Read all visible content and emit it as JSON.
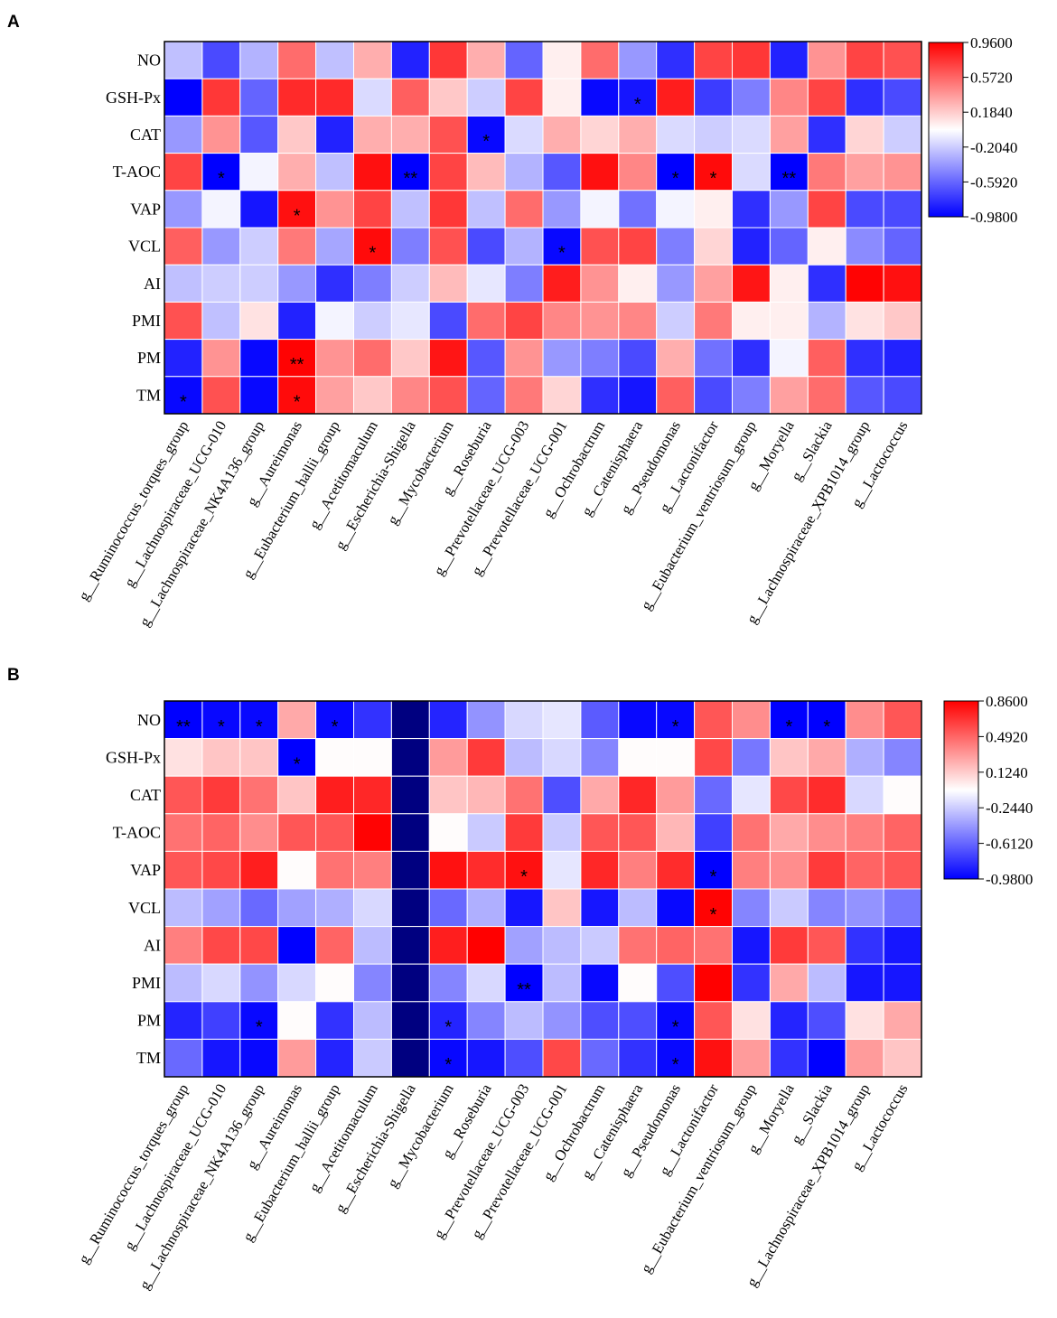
{
  "chart_data": [
    {
      "type": "heatmap",
      "panel_label": "A",
      "rows": [
        "NO",
        "GSH-Px",
        "CAT",
        "T-AOC",
        "VAP",
        "VCL",
        "AI",
        "PMI",
        "PM",
        "TM"
      ],
      "columns": [
        "g__Ruminococcus_torques_group",
        "g__Lachnospiraceae_UCG-010",
        "g__Lachnospiraceae_NK4A136_group",
        "g__Aureimonas",
        "g__Eubacterium_hallii_group",
        "g__Acetitomaculum",
        "g__Escherichia-Shigella",
        "g__Mycobacterium",
        "g__Roseburia",
        "g__Prevotellaceae_UCG-003",
        "g__Prevotellaceae_UCG-001",
        "g__Ochrobactrum",
        "g__Catenisphaera",
        "g__Pseudomonas",
        "g__Lactonifactor",
        "g__Eubacterium_ventriosum_group",
        "g__Moryella",
        "g__Slackia",
        "g__Lachnospiraceae_XPB1014_group",
        "g__Lactococcus"
      ],
      "values": [
        [
          -0.25,
          -0.7,
          -0.3,
          0.55,
          -0.25,
          0.3,
          -0.85,
          0.75,
          0.3,
          -0.6,
          0.05,
          0.55,
          -0.4,
          -0.8,
          0.7,
          0.75,
          -0.85,
          0.4,
          0.7,
          0.65
        ],
        [
          -0.98,
          0.75,
          -0.6,
          0.8,
          0.8,
          -0.15,
          0.6,
          0.2,
          -0.2,
          0.7,
          0.05,
          -0.95,
          -0.9,
          0.85,
          -0.75,
          -0.5,
          0.45,
          0.7,
          -0.8,
          -0.7
        ],
        [
          -0.4,
          0.4,
          -0.65,
          0.2,
          -0.85,
          0.3,
          0.3,
          0.65,
          -0.95,
          -0.15,
          0.3,
          0.15,
          0.3,
          -0.15,
          -0.2,
          -0.15,
          0.35,
          -0.8,
          0.15,
          -0.2
        ],
        [
          0.7,
          -0.98,
          -0.05,
          0.3,
          -0.25,
          0.9,
          -0.98,
          0.7,
          0.25,
          -0.3,
          -0.65,
          0.9,
          0.45,
          -0.98,
          0.92,
          -0.15,
          -0.98,
          0.5,
          0.35,
          0.4
        ],
        [
          -0.4,
          -0.05,
          -0.9,
          0.9,
          0.4,
          0.7,
          -0.25,
          0.75,
          -0.25,
          0.55,
          -0.4,
          -0.05,
          -0.55,
          -0.05,
          0.05,
          -0.8,
          -0.4,
          0.7,
          -0.7,
          -0.7
        ],
        [
          0.6,
          -0.4,
          -0.2,
          0.5,
          -0.35,
          0.92,
          -0.5,
          0.65,
          -0.7,
          -0.3,
          -0.95,
          0.65,
          0.7,
          -0.5,
          0.15,
          -0.85,
          -0.6,
          0.05,
          -0.45,
          -0.6
        ],
        [
          -0.25,
          -0.2,
          -0.2,
          -0.4,
          -0.8,
          -0.5,
          -0.2,
          0.25,
          -0.1,
          -0.5,
          0.85,
          0.4,
          0.05,
          -0.4,
          0.35,
          0.88,
          0.05,
          -0.8,
          0.95,
          0.9
        ],
        [
          0.65,
          -0.25,
          0.1,
          -0.85,
          -0.05,
          -0.2,
          -0.1,
          -0.7,
          0.55,
          0.7,
          0.45,
          0.4,
          0.45,
          -0.2,
          0.5,
          0.05,
          0.05,
          -0.3,
          0.1,
          0.2
        ],
        [
          -0.85,
          0.4,
          -0.95,
          0.95,
          0.4,
          0.55,
          0.2,
          0.88,
          -0.65,
          0.4,
          -0.4,
          -0.5,
          -0.7,
          0.3,
          -0.55,
          -0.8,
          -0.05,
          0.6,
          -0.8,
          -0.85
        ],
        [
          -0.95,
          0.65,
          -0.95,
          0.92,
          0.35,
          0.2,
          0.45,
          0.65,
          -0.6,
          0.5,
          0.15,
          -0.8,
          -0.9,
          0.6,
          -0.7,
          -0.5,
          0.35,
          0.55,
          -0.65,
          -0.7
        ]
      ],
      "significance": [
        [
          "",
          "",
          "",
          "",
          "",
          "",
          "",
          "",
          "",
          "",
          "",
          "",
          "",
          "",
          "",
          "",
          "",
          "",
          "",
          ""
        ],
        [
          "",
          "",
          "",
          "",
          "",
          "",
          "",
          "",
          "",
          "",
          "",
          "",
          "*",
          "",
          "",
          "",
          "",
          "",
          "",
          ""
        ],
        [
          "",
          "",
          "",
          "",
          "",
          "",
          "",
          "",
          "*",
          "",
          "",
          "",
          "",
          "",
          "",
          "",
          "",
          "",
          "",
          ""
        ],
        [
          "",
          "*",
          "",
          "",
          "",
          "",
          "**",
          "",
          "",
          "",
          "",
          "",
          "",
          "*",
          "*",
          "",
          "**",
          "",
          "",
          ""
        ],
        [
          "",
          "",
          "",
          "*",
          "",
          "",
          "",
          "",
          "",
          "",
          "",
          "",
          "",
          "",
          "",
          "",
          "",
          "",
          "",
          ""
        ],
        [
          "",
          "",
          "",
          "",
          "",
          "*",
          "",
          "",
          "",
          "",
          "*",
          "",
          "",
          "",
          "",
          "",
          "",
          "",
          "",
          ""
        ],
        [
          "",
          "",
          "",
          "",
          "",
          "",
          "",
          "",
          "",
          "",
          "",
          "",
          "",
          "",
          "",
          "",
          "",
          "",
          "",
          ""
        ],
        [
          "",
          "",
          "",
          "",
          "",
          "",
          "",
          "",
          "",
          "",
          "",
          "",
          "",
          "",
          "",
          "",
          "",
          "",
          "",
          ""
        ],
        [
          "",
          "",
          "",
          "**",
          "",
          "",
          "",
          "",
          "",
          "",
          "",
          "",
          "",
          "",
          "",
          "",
          "",
          "",
          "",
          ""
        ],
        [
          "*",
          "",
          "",
          "*",
          "",
          "",
          "",
          "",
          "",
          "",
          "",
          "",
          "",
          "",
          "",
          "",
          "",
          "",
          "",
          ""
        ]
      ],
      "colorbar": {
        "min": -0.98,
        "max": 0.96,
        "ticks": [
          "0.9600",
          "0.5720",
          "0.1840",
          "-0.2040",
          "-0.5920",
          "-0.9800"
        ]
      },
      "colors": {
        "high": "#ff0000",
        "mid": "#ffffff",
        "low": "#0000ff"
      }
    },
    {
      "type": "heatmap",
      "panel_label": "B",
      "rows": [
        "NO",
        "GSH-Px",
        "CAT",
        "T-AOC",
        "VAP",
        "VCL",
        "AI",
        "PMI",
        "PM",
        "TM"
      ],
      "columns": [
        "g__Ruminococcus_torques_group",
        "g__Lachnospiraceae_UCG-010",
        "g__Lachnospiraceae_NK4A136_group",
        "g__Aureimonas",
        "g__Eubacterium_hallii_group",
        "g__Acetitomaculum",
        "g__Escherichia-Shigella",
        "g__Mycobacterium",
        "g__Roseburia",
        "g__Prevotellaceae_UCG-003",
        "g__Prevotellaceae_UCG-001",
        "g__Ochrobactrum",
        "g__Catenisphaera",
        "g__Pseudomonas",
        "g__Lactonifactor",
        "g__Eubacterium_ventriosum_group",
        "g__Moryella",
        "g__Slackia",
        "g__Lachnospiraceae_XPB1014_group",
        "g__Lactococcus"
      ],
      "values": [
        [
          -0.98,
          -0.95,
          -0.95,
          0.25,
          -0.95,
          -0.8,
          null,
          -0.85,
          -0.45,
          -0.2,
          -0.15,
          -0.65,
          -0.95,
          -0.95,
          0.55,
          0.35,
          -0.98,
          -0.98,
          0.35,
          0.55
        ],
        [
          0.05,
          0.15,
          0.15,
          -0.98,
          -0.05,
          -0.05,
          null,
          0.3,
          0.65,
          -0.3,
          -0.2,
          -0.5,
          -0.05,
          -0.05,
          0.6,
          -0.55,
          0.15,
          0.25,
          -0.35,
          -0.5
        ],
        [
          0.55,
          0.65,
          0.45,
          0.15,
          0.75,
          0.72,
          null,
          0.15,
          0.2,
          0.45,
          -0.7,
          0.25,
          0.72,
          0.3,
          -0.6,
          -0.15,
          0.6,
          0.7,
          -0.2,
          -0.05
        ],
        [
          0.45,
          0.5,
          0.35,
          0.55,
          0.55,
          0.85,
          null,
          -0.05,
          -0.25,
          0.65,
          -0.25,
          0.55,
          0.55,
          0.2,
          -0.75,
          0.45,
          0.25,
          0.35,
          0.4,
          0.5
        ],
        [
          0.55,
          0.6,
          0.75,
          -0.05,
          0.45,
          0.4,
          null,
          0.8,
          0.7,
          0.8,
          -0.15,
          0.72,
          0.4,
          0.7,
          -0.98,
          0.4,
          0.35,
          0.65,
          0.5,
          0.55
        ],
        [
          -0.3,
          -0.4,
          -0.6,
          -0.4,
          -0.35,
          -0.2,
          null,
          -0.6,
          -0.35,
          -0.9,
          0.15,
          -0.9,
          -0.3,
          -0.95,
          0.85,
          -0.5,
          -0.25,
          -0.5,
          -0.45,
          -0.55
        ],
        [
          0.4,
          0.6,
          0.6,
          -0.98,
          0.5,
          -0.3,
          null,
          0.75,
          0.86,
          -0.4,
          -0.3,
          -0.25,
          0.45,
          0.5,
          0.45,
          -0.9,
          0.65,
          0.55,
          -0.8,
          -0.9
        ],
        [
          -0.3,
          -0.2,
          -0.45,
          -0.2,
          -0.05,
          -0.5,
          null,
          -0.5,
          -0.2,
          -0.98,
          -0.3,
          -0.95,
          -0.05,
          -0.7,
          0.86,
          -0.8,
          0.25,
          -0.3,
          -0.9,
          -0.9
        ],
        [
          -0.85,
          -0.75,
          -0.95,
          -0.05,
          -0.8,
          -0.3,
          null,
          -0.85,
          -0.5,
          -0.3,
          -0.45,
          -0.7,
          -0.7,
          -0.95,
          0.55,
          0.05,
          -0.85,
          -0.7,
          0.05,
          0.25
        ],
        [
          -0.6,
          -0.9,
          -0.95,
          0.3,
          -0.85,
          -0.25,
          null,
          -0.95,
          -0.9,
          -0.7,
          0.6,
          -0.6,
          -0.8,
          -0.95,
          0.8,
          0.3,
          -0.8,
          -0.98,
          0.3,
          0.15
        ]
      ],
      "significance": [
        [
          "**",
          "*",
          "*",
          "",
          "*",
          "",
          "",
          "",
          "",
          "",
          "",
          "",
          "",
          "*",
          "",
          "",
          "*",
          "*",
          "",
          ""
        ],
        [
          "",
          "",
          "",
          "*",
          "",
          "",
          "",
          "",
          "",
          "",
          "",
          "",
          "",
          "",
          "",
          "",
          "",
          "",
          "",
          ""
        ],
        [
          "",
          "",
          "",
          "",
          "",
          "",
          "",
          "",
          "",
          "",
          "",
          "",
          "",
          "",
          "",
          "",
          "",
          "",
          "",
          ""
        ],
        [
          "",
          "",
          "",
          "",
          "",
          "",
          "",
          "",
          "",
          "",
          "",
          "",
          "",
          "",
          "",
          "",
          "",
          "",
          "",
          ""
        ],
        [
          "",
          "",
          "",
          "",
          "",
          "",
          "",
          "",
          "",
          "*",
          "",
          "",
          "",
          "",
          "*",
          "",
          "",
          "",
          "",
          ""
        ],
        [
          "",
          "",
          "",
          "",
          "",
          "",
          "",
          "",
          "",
          "",
          "",
          "",
          "",
          "",
          "*",
          "",
          "",
          "",
          "",
          ""
        ],
        [
          "",
          "",
          "",
          "",
          "",
          "",
          "",
          "",
          "",
          "",
          "",
          "",
          "",
          "",
          "",
          "",
          "",
          "",
          "",
          ""
        ],
        [
          "",
          "",
          "",
          "",
          "",
          "",
          "",
          "",
          "",
          "**",
          "",
          "",
          "",
          "",
          "",
          "",
          "",
          "",
          "",
          ""
        ],
        [
          "",
          "",
          "*",
          "",
          "",
          "",
          "",
          "*",
          "",
          "",
          "",
          "",
          "",
          "*",
          "",
          "",
          "",
          "",
          "",
          ""
        ],
        [
          "",
          "",
          "",
          "",
          "",
          "",
          "",
          "*",
          "",
          "",
          "",
          "",
          "",
          "*",
          "",
          "",
          "",
          "",
          "",
          ""
        ]
      ],
      "colorbar": {
        "min": -0.98,
        "max": 0.86,
        "ticks": [
          "0.8600",
          "0.4920",
          "0.1240",
          "-0.2440",
          "-0.6120",
          "-0.9800"
        ]
      },
      "colors": {
        "high": "#ff0000",
        "mid": "#ffffff",
        "low": "#0000ff",
        "missing": "#000080"
      }
    }
  ]
}
